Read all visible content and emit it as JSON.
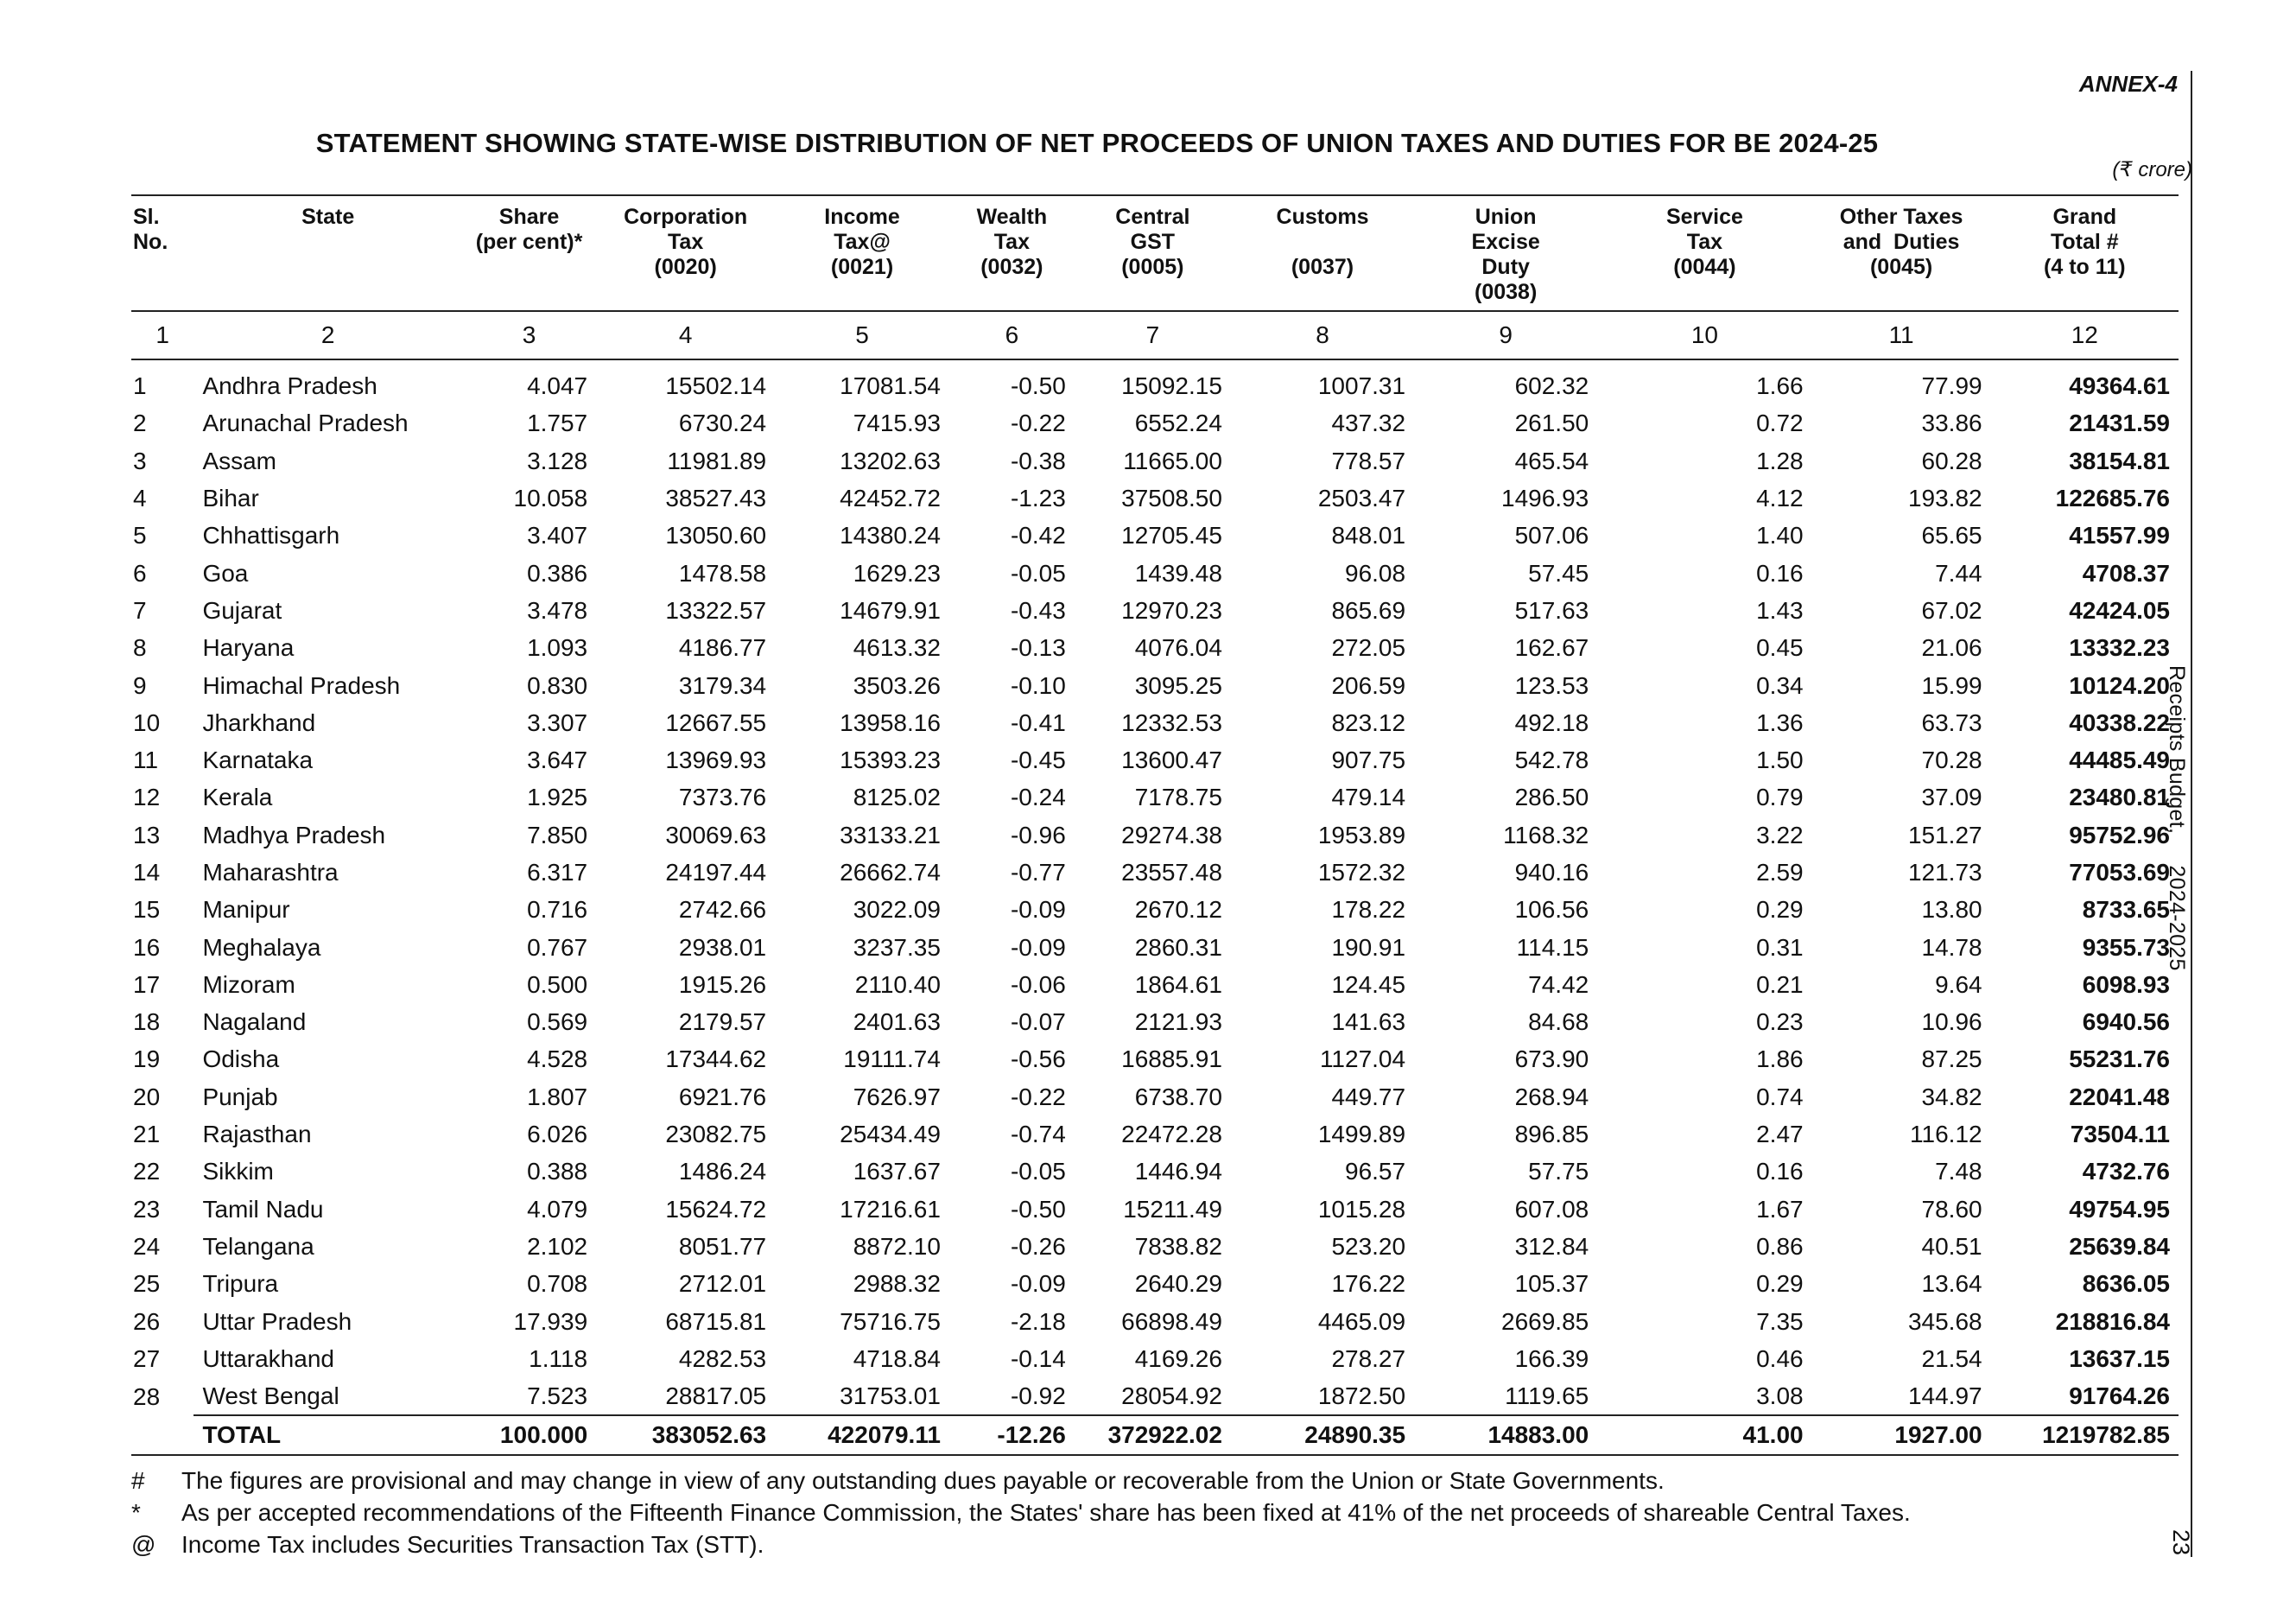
{
  "annex": "ANNEX-4",
  "title": "STATEMENT SHOWING STATE-WISE DISTRIBUTION OF NET PROCEEDS OF UNION TAXES AND DUTIES FOR BE 2024-25",
  "unit": "(₹ crore)",
  "side_text": "Receipts Budget,     2024-2025",
  "page_number": "23",
  "headers": [
    "Sl.\nNo.",
    "State",
    "Share\n(per cent)*",
    "Corporation\nTax\n(0020)",
    "Income\nTax@\n(0021)",
    "Wealth\nTax\n(0032)",
    "Central\nGST\n(0005)",
    "Customs\n\n(0037)",
    "Union\nExcise\nDuty\n(0038)",
    "Service\nTax\n(0044)",
    "Other Taxes\nand  Duties\n(0045)",
    "Grand\nTotal #\n(4 to 11)"
  ],
  "column_numbers": [
    "1",
    "2",
    "3",
    "4",
    "5",
    "6",
    "7",
    "8",
    "9",
    "10",
    "11",
    "12"
  ],
  "rows": [
    [
      "1",
      "Andhra Pradesh",
      "4.047",
      "15502.14",
      "17081.54",
      "-0.50",
      "15092.15",
      "1007.31",
      "602.32",
      "1.66",
      "77.99",
      "49364.61"
    ],
    [
      "2",
      "Arunachal Pradesh",
      "1.757",
      "6730.24",
      "7415.93",
      "-0.22",
      "6552.24",
      "437.32",
      "261.50",
      "0.72",
      "33.86",
      "21431.59"
    ],
    [
      "3",
      "Assam",
      "3.128",
      "11981.89",
      "13202.63",
      "-0.38",
      "11665.00",
      "778.57",
      "465.54",
      "1.28",
      "60.28",
      "38154.81"
    ],
    [
      "4",
      "Bihar",
      "10.058",
      "38527.43",
      "42452.72",
      "-1.23",
      "37508.50",
      "2503.47",
      "1496.93",
      "4.12",
      "193.82",
      "122685.76"
    ],
    [
      "5",
      "Chhattisgarh",
      "3.407",
      "13050.60",
      "14380.24",
      "-0.42",
      "12705.45",
      "848.01",
      "507.06",
      "1.40",
      "65.65",
      "41557.99"
    ],
    [
      "6",
      "Goa",
      "0.386",
      "1478.58",
      "1629.23",
      "-0.05",
      "1439.48",
      "96.08",
      "57.45",
      "0.16",
      "7.44",
      "4708.37"
    ],
    [
      "7",
      "Gujarat",
      "3.478",
      "13322.57",
      "14679.91",
      "-0.43",
      "12970.23",
      "865.69",
      "517.63",
      "1.43",
      "67.02",
      "42424.05"
    ],
    [
      "8",
      "Haryana",
      "1.093",
      "4186.77",
      "4613.32",
      "-0.13",
      "4076.04",
      "272.05",
      "162.67",
      "0.45",
      "21.06",
      "13332.23"
    ],
    [
      "9",
      "Himachal Pradesh",
      "0.830",
      "3179.34",
      "3503.26",
      "-0.10",
      "3095.25",
      "206.59",
      "123.53",
      "0.34",
      "15.99",
      "10124.20"
    ],
    [
      "10",
      "Jharkhand",
      "3.307",
      "12667.55",
      "13958.16",
      "-0.41",
      "12332.53",
      "823.12",
      "492.18",
      "1.36",
      "63.73",
      "40338.22"
    ],
    [
      "11",
      "Karnataka",
      "3.647",
      "13969.93",
      "15393.23",
      "-0.45",
      "13600.47",
      "907.75",
      "542.78",
      "1.50",
      "70.28",
      "44485.49"
    ],
    [
      "12",
      "Kerala",
      "1.925",
      "7373.76",
      "8125.02",
      "-0.24",
      "7178.75",
      "479.14",
      "286.50",
      "0.79",
      "37.09",
      "23480.81"
    ],
    [
      "13",
      "Madhya Pradesh",
      "7.850",
      "30069.63",
      "33133.21",
      "-0.96",
      "29274.38",
      "1953.89",
      "1168.32",
      "3.22",
      "151.27",
      "95752.96"
    ],
    [
      "14",
      "Maharashtra",
      "6.317",
      "24197.44",
      "26662.74",
      "-0.77",
      "23557.48",
      "1572.32",
      "940.16",
      "2.59",
      "121.73",
      "77053.69"
    ],
    [
      "15",
      "Manipur",
      "0.716",
      "2742.66",
      "3022.09",
      "-0.09",
      "2670.12",
      "178.22",
      "106.56",
      "0.29",
      "13.80",
      "8733.65"
    ],
    [
      "16",
      "Meghalaya",
      "0.767",
      "2938.01",
      "3237.35",
      "-0.09",
      "2860.31",
      "190.91",
      "114.15",
      "0.31",
      "14.78",
      "9355.73"
    ],
    [
      "17",
      "Mizoram",
      "0.500",
      "1915.26",
      "2110.40",
      "-0.06",
      "1864.61",
      "124.45",
      "74.42",
      "0.21",
      "9.64",
      "6098.93"
    ],
    [
      "18",
      "Nagaland",
      "0.569",
      "2179.57",
      "2401.63",
      "-0.07",
      "2121.93",
      "141.63",
      "84.68",
      "0.23",
      "10.96",
      "6940.56"
    ],
    [
      "19",
      "Odisha",
      "4.528",
      "17344.62",
      "19111.74",
      "-0.56",
      "16885.91",
      "1127.04",
      "673.90",
      "1.86",
      "87.25",
      "55231.76"
    ],
    [
      "20",
      "Punjab",
      "1.807",
      "6921.76",
      "7626.97",
      "-0.22",
      "6738.70",
      "449.77",
      "268.94",
      "0.74",
      "34.82",
      "22041.48"
    ],
    [
      "21",
      "Rajasthan",
      "6.026",
      "23082.75",
      "25434.49",
      "-0.74",
      "22472.28",
      "1499.89",
      "896.85",
      "2.47",
      "116.12",
      "73504.11"
    ],
    [
      "22",
      "Sikkim",
      "0.388",
      "1486.24",
      "1637.67",
      "-0.05",
      "1446.94",
      "96.57",
      "57.75",
      "0.16",
      "7.48",
      "4732.76"
    ],
    [
      "23",
      "Tamil Nadu",
      "4.079",
      "15624.72",
      "17216.61",
      "-0.50",
      "15211.49",
      "1015.28",
      "607.08",
      "1.67",
      "78.60",
      "49754.95"
    ],
    [
      "24",
      "Telangana",
      "2.102",
      "8051.77",
      "8872.10",
      "-0.26",
      "7838.82",
      "523.20",
      "312.84",
      "0.86",
      "40.51",
      "25639.84"
    ],
    [
      "25",
      "Tripura",
      "0.708",
      "2712.01",
      "2988.32",
      "-0.09",
      "2640.29",
      "176.22",
      "105.37",
      "0.29",
      "13.64",
      "8636.05"
    ],
    [
      "26",
      "Uttar Pradesh",
      "17.939",
      "68715.81",
      "75716.75",
      "-2.18",
      "66898.49",
      "4465.09",
      "2669.85",
      "7.35",
      "345.68",
      "218816.84"
    ],
    [
      "27",
      "Uttarakhand",
      "1.118",
      "4282.53",
      "4718.84",
      "-0.14",
      "4169.26",
      "278.27",
      "166.39",
      "0.46",
      "21.54",
      "13637.15"
    ],
    [
      "28",
      "West Bengal",
      "7.523",
      "28817.05",
      "31753.01",
      "-0.92",
      "28054.92",
      "1872.50",
      "1119.65",
      "3.08",
      "144.97",
      "91764.26"
    ]
  ],
  "total_row": [
    "",
    "TOTAL",
    "100.000",
    "383052.63",
    "422079.11",
    "-12.26",
    "372922.02",
    "24890.35",
    "14883.00",
    "41.00",
    "1927.00",
    "1219782.85"
  ],
  "notes": [
    {
      "symbol": "#",
      "text": "The figures are provisional and may change in view of any outstanding dues payable or recoverable from the Union or State Governments."
    },
    {
      "symbol": "*",
      "text": "As per accepted recommendations of the Fifteenth Finance Commission, the States' share has been fixed at 41% of the net proceeds of shareable Central Taxes."
    },
    {
      "symbol": "@",
      "text": "Income Tax includes Securities Transaction Tax (STT)."
    }
  ]
}
